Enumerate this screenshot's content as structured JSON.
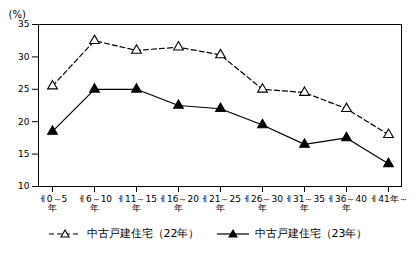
{
  "chart_data": {
    "type": "line",
    "categories": [
      "ㅔ0～5\n年",
      "ㅔ6～10\n年",
      "ㅔ11～15\n年",
      "ㅔ16～20\n年",
      "ㅔ21～25\n年",
      "ㅔ26～30\n年",
      "ㅔ31～35\n年",
      "ㅔ36～40\n年",
      "ㅔ41年～"
    ],
    "series": [
      {
        "name": "中古戸建住宅（22年）",
        "color": "#000000",
        "marker": "triangle-open",
        "line_style": "dashed",
        "values": [
          25.5,
          32.5,
          31.0,
          31.5,
          30.3,
          25.0,
          24.5,
          22.0,
          18.0
        ]
      },
      {
        "name": "中古戸建住宅（23年）",
        "color": "#000000",
        "marker": "triangle",
        "line_style": "solid",
        "values": [
          18.5,
          25.0,
          25.0,
          22.5,
          22.0,
          19.5,
          16.5,
          17.5,
          13.5
        ]
      }
    ],
    "ylabel": "(%)",
    "ylim": [
      10,
      35
    ],
    "yticks": [
      10,
      15,
      20,
      25,
      30,
      35
    ],
    "grid": false,
    "legend": "bottom"
  }
}
